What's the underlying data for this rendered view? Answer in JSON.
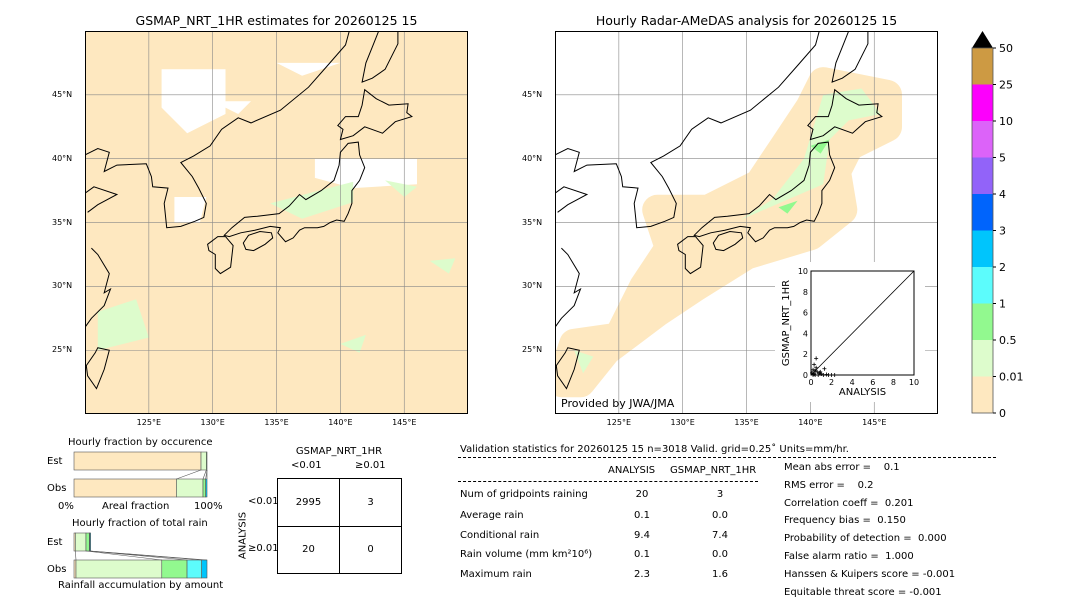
{
  "left_map": {
    "title": "GSMAP_NRT_1HR estimates for 20260125 15"
  },
  "right_map": {
    "title": "Hourly Radar-AMeDAS analysis for 20260125 15",
    "credit": "Provided by JWA/JMA"
  },
  "map_axes": {
    "lon_ticks": [
      "125°E",
      "130°E",
      "135°E",
      "140°E",
      "145°E"
    ],
    "lat_ticks": [
      "45°N",
      "40°N",
      "35°N",
      "30°N",
      "25°N"
    ]
  },
  "colorbar": {
    "labels": [
      "0",
      "0.01",
      "0.5",
      "1",
      "2",
      "3",
      "4",
      "5",
      "10",
      "25",
      "50"
    ],
    "colors": [
      "#fee8c0",
      "#ddfccc",
      "#92f98f",
      "#5cfcfc",
      "#00c5fc",
      "#0064fc",
      "#9263f9",
      "#dc63f9",
      "#fc00fc",
      "#cd9a43"
    ],
    "extend_color": "#000000"
  },
  "chart_data": [
    {
      "type": "scatter",
      "xlabel": "ANALYSIS",
      "ylabel": "GSMAP_NRT_1HR",
      "xlim": [
        0,
        10
      ],
      "ylim": [
        0,
        10
      ],
      "ticks": [
        "0",
        "2",
        "4",
        "6",
        "8",
        "10"
      ],
      "points": [
        [
          0.5,
          1.6
        ],
        [
          1.3,
          0.6
        ],
        [
          0.3,
          1.0
        ],
        [
          0.5,
          0.7
        ],
        [
          0.2,
          0.5
        ],
        [
          0.4,
          0.4
        ],
        [
          0.6,
          0.3
        ],
        [
          0.8,
          0.2
        ],
        [
          1.0,
          0.1
        ],
        [
          1.5,
          0.05
        ],
        [
          2.0,
          0.0
        ],
        [
          2.3,
          0.0
        ],
        [
          0.1,
          0.2
        ],
        [
          0.3,
          0.1
        ],
        [
          0.7,
          0.0
        ],
        [
          1.2,
          0.0
        ],
        [
          0.2,
          0.0
        ],
        [
          0.9,
          0.3
        ],
        [
          0.4,
          0.0
        ],
        [
          1.7,
          0.0
        ]
      ]
    },
    {
      "type": "bar",
      "title": "Hourly fraction by occurence",
      "categories": [
        "Est",
        "Obs"
      ],
      "xlabel_left": "0%",
      "xlabel": "Areal fraction",
      "xlabel_right": "100%",
      "series": [
        {
          "color": "#fee8c0",
          "values": [
            95.5,
            77
          ]
        },
        {
          "color": "#ddfccc",
          "values": [
            4,
            20
          ]
        },
        {
          "color": "#92f98f",
          "values": [
            0.5,
            2
          ]
        },
        {
          "color": "#00c5fc",
          "values": [
            0,
            1
          ]
        }
      ]
    },
    {
      "type": "bar",
      "title": "Hourly fraction of total rain",
      "categories": [
        "Est",
        "Obs"
      ],
      "xlabel": "Rainfall accumulation by amount",
      "series": [
        {
          "color": "#fee8c0",
          "values": [
            1,
            1.5
          ]
        },
        {
          "color": "#ddfccc",
          "values": [
            8,
            64.5
          ]
        },
        {
          "color": "#92f98f",
          "values": [
            2.5,
            19
          ]
        },
        {
          "color": "#5cfcfc",
          "values": [
            0.5,
            11
          ]
        },
        {
          "color": "#00c5fc",
          "values": [
            0.5,
            4
          ]
        }
      ]
    }
  ],
  "contingency": {
    "col_title": "GSMAP_NRT_1HR",
    "col_headers": [
      "<0.01",
      "≥0.01"
    ],
    "row_title": "ANALYSIS",
    "row_headers": [
      "<0.01",
      "≥0.01"
    ],
    "cells": [
      [
        "2995",
        "3"
      ],
      [
        "20",
        "0"
      ]
    ]
  },
  "stats": {
    "header": "Validation statistics for 20260125 15  n=3018 Valid. grid=0.25˚ Units=mm/hr.",
    "col_headers": [
      "ANALYSIS",
      "GSMAP_NRT_1HR"
    ],
    "rows": [
      {
        "label": "Num of gridpoints raining",
        "a": "20",
        "b": "3"
      },
      {
        "label": "Average rain",
        "a": "0.1",
        "b": "0.0"
      },
      {
        "label": "Conditional rain",
        "a": "9.4",
        "b": "7.4"
      },
      {
        "label": "Rain volume (mm km²10⁶)",
        "a": "0.1",
        "b": "0.0"
      },
      {
        "label": "Maximum rain",
        "a": "2.3",
        "b": "1.6"
      }
    ],
    "scores": [
      "Mean abs error =    0.1",
      "RMS error =    0.2",
      "Correlation coeff =  0.201",
      "Frequency bias =  0.150",
      "Probability of detection =  0.000",
      "False alarm ratio =  1.000",
      "Hanssen & Kuipers score = -0.001",
      "Equitable threat score = -0.001"
    ]
  }
}
